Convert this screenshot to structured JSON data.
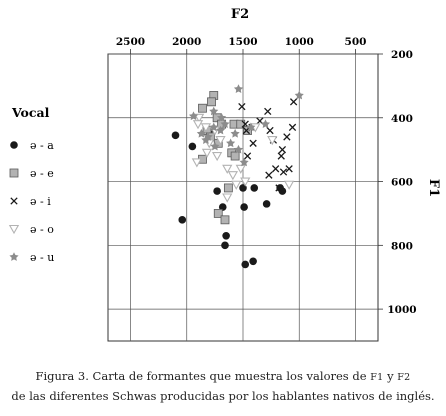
{
  "chart_data": {
    "type": "scatter",
    "title": "",
    "xlabel": "F2",
    "ylabel": "F1",
    "x_axis_position": "top",
    "y_axis_position": "right",
    "x_reversed": true,
    "y_reversed": true,
    "xlim": [
      2700,
      300
    ],
    "ylim": [
      200,
      1100
    ],
    "x_ticks": [
      2500,
      2000,
      1500,
      1000,
      500
    ],
    "y_ticks": [
      200,
      400,
      600,
      800,
      1000
    ],
    "grid": true,
    "legend_title": "Vocal",
    "legend_position": "left",
    "series": [
      {
        "name": "ə - a",
        "marker": "circle",
        "color": "#1a1a1a",
        "points": [
          [
            2100,
            455
          ],
          [
            1950,
            490
          ],
          [
            1800,
            440
          ],
          [
            1730,
            630
          ],
          [
            1680,
            680
          ],
          [
            1650,
            770
          ],
          [
            1660,
            800
          ],
          [
            1500,
            620
          ],
          [
            1490,
            680
          ],
          [
            1400,
            620
          ],
          [
            1290,
            670
          ],
          [
            1170,
            620
          ],
          [
            1150,
            630
          ],
          [
            2040,
            720
          ],
          [
            1480,
            860
          ],
          [
            1410,
            850
          ]
        ]
      },
      {
        "name": "ə - e",
        "marker": "square",
        "color": "#b3b3b3",
        "points": [
          [
            1760,
            330
          ],
          [
            1780,
            350
          ],
          [
            1860,
            370
          ],
          [
            1730,
            400
          ],
          [
            1690,
            420
          ],
          [
            1820,
            440
          ],
          [
            1790,
            460
          ],
          [
            1720,
            480
          ],
          [
            1860,
            530
          ],
          [
            1600,
            510
          ],
          [
            1570,
            520
          ],
          [
            1580,
            420
          ],
          [
            1520,
            420
          ],
          [
            1460,
            440
          ],
          [
            1720,
            700
          ],
          [
            1660,
            720
          ],
          [
            1630,
            620
          ]
        ]
      },
      {
        "name": "ə - i",
        "marker": "x",
        "color": "#1a1a1a",
        "points": [
          [
            1510,
            365
          ],
          [
            1480,
            420
          ],
          [
            1470,
            440
          ],
          [
            1420,
            430
          ],
          [
            1350,
            410
          ],
          [
            1280,
            380
          ],
          [
            1260,
            440
          ],
          [
            1230,
            470
          ],
          [
            1160,
            520
          ],
          [
            1150,
            500
          ],
          [
            1110,
            460
          ],
          [
            1060,
            430
          ],
          [
            1210,
            560
          ],
          [
            1140,
            570
          ],
          [
            1090,
            560
          ],
          [
            1180,
            620
          ],
          [
            1270,
            580
          ],
          [
            1410,
            480
          ],
          [
            1460,
            520
          ],
          [
            1050,
            350
          ]
        ]
      },
      {
        "name": "ə - o",
        "marker": "triangle-down",
        "color": "#b3b3b3",
        "points": [
          [
            1890,
            400
          ],
          [
            1900,
            420
          ],
          [
            1830,
            430
          ],
          [
            1750,
            440
          ],
          [
            1700,
            470
          ],
          [
            1800,
            480
          ],
          [
            1820,
            510
          ],
          [
            1730,
            520
          ],
          [
            1910,
            540
          ],
          [
            1640,
            560
          ],
          [
            1590,
            580
          ],
          [
            1520,
            560
          ],
          [
            1480,
            600
          ],
          [
            1560,
            610
          ],
          [
            1640,
            650
          ],
          [
            1090,
            610
          ],
          [
            1240,
            470
          ],
          [
            1390,
            430
          ]
        ]
      },
      {
        "name": "ə - u",
        "marker": "star",
        "color": "#8c8c8c",
        "points": [
          [
            1540,
            310
          ],
          [
            1760,
            380
          ],
          [
            1690,
            400
          ],
          [
            1660,
            420
          ],
          [
            1760,
            430
          ],
          [
            1700,
            440
          ],
          [
            1870,
            450
          ],
          [
            1940,
            395
          ],
          [
            1810,
            460
          ],
          [
            1750,
            490
          ],
          [
            1610,
            480
          ],
          [
            1570,
            450
          ],
          [
            1430,
            430
          ],
          [
            1300,
            420
          ],
          [
            1000,
            330
          ],
          [
            1540,
            500
          ],
          [
            1490,
            540
          ],
          [
            1830,
            470
          ]
        ]
      }
    ]
  },
  "caption": {
    "line1_prefix": "Figura 3. Carta de formantes que muestra los valores de",
    "f1": "F1",
    "line1_and": "y",
    "f2": "F2",
    "line2": "de las diferentes Schwas producidas por los hablantes nativos de inglés."
  }
}
